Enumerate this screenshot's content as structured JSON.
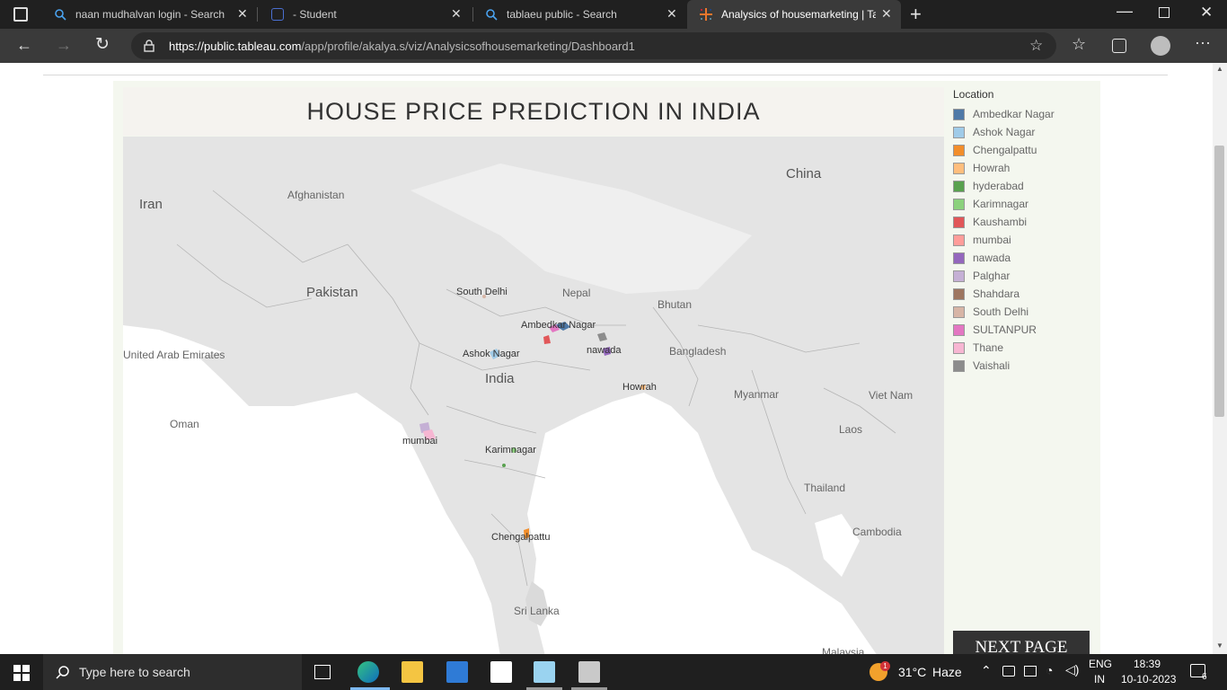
{
  "browser": {
    "tabs": [
      {
        "title": "naan mudhalvan login - Search",
        "active": false
      },
      {
        "title": "- Student",
        "active": false
      },
      {
        "title": "tablaeu public - Search",
        "active": false
      },
      {
        "title": "Analysics of housemarketing | Ta",
        "active": true
      }
    ],
    "new_tab": "+",
    "url_host": "https://public.tableau.com",
    "url_path": "/app/profile/akalya.s/viz/Analysicsofhousemarketing/Dashboard1"
  },
  "dashboard": {
    "title": "HOUSE PRICE PREDICTION IN INDIA",
    "next_button": "NEXT PAGE",
    "legend": {
      "title": "Location",
      "items": [
        {
          "label": "Ambedkar Nagar",
          "color": "#4e79a7"
        },
        {
          "label": "Ashok Nagar",
          "color": "#a0cbe8"
        },
        {
          "label": "Chengalpattu",
          "color": "#f28e2b"
        },
        {
          "label": "Howrah",
          "color": "#ffbe7d"
        },
        {
          "label": "hyderabad",
          "color": "#59a14f"
        },
        {
          "label": "Karimnagar",
          "color": "#8cd17d"
        },
        {
          "label": "Kaushambi",
          "color": "#e15759"
        },
        {
          "label": "mumbai",
          "color": "#ff9d9a"
        },
        {
          "label": "nawada",
          "color": "#9467bd"
        },
        {
          "label": "Palghar",
          "color": "#c5b0d5"
        },
        {
          "label": "Shahdara",
          "color": "#9d7660"
        },
        {
          "label": "South Delhi",
          "color": "#d7b5a6"
        },
        {
          "label": "SULTANPUR",
          "color": "#e377c2"
        },
        {
          "label": "Thane",
          "color": "#f7b6d2"
        },
        {
          "label": "Vaishali",
          "color": "#8c8c8c"
        }
      ]
    },
    "map": {
      "countries": {
        "iran": "Iran",
        "afghanistan": "Afghanistan",
        "pakistan": "Pakistan",
        "uae": "United Arab Emirates",
        "oman": "Oman",
        "india": "India",
        "nepal": "Nepal",
        "bhutan": "Bhutan",
        "bangladesh": "Bangladesh",
        "china": "China",
        "myanmar": "Myanmar",
        "laos": "Laos",
        "thailand": "Thailand",
        "vietnam": "Viet Nam",
        "cambodia": "Cambodia",
        "srilanka": "Sri Lanka",
        "malaysia": "Malaysia"
      },
      "places": {
        "south_delhi": "South Delhi",
        "ambedkar_nagar": "Ambedkar Nagar",
        "ashok_nagar": "Ashok Nagar",
        "nawada": "nawada",
        "howrah": "Howrah",
        "mumbai": "mumbai",
        "karimnagar": "Karimnagar",
        "chengalpattu": "Chengalpattu"
      }
    }
  },
  "taskbar": {
    "search_placeholder": "Type here to search",
    "weather_temp": "31°C",
    "weather_desc": "Haze",
    "weather_badge": "1",
    "lang": "ENG",
    "region": "IN",
    "time": "18:39",
    "date": "10-10-2023",
    "notifications": "6"
  }
}
